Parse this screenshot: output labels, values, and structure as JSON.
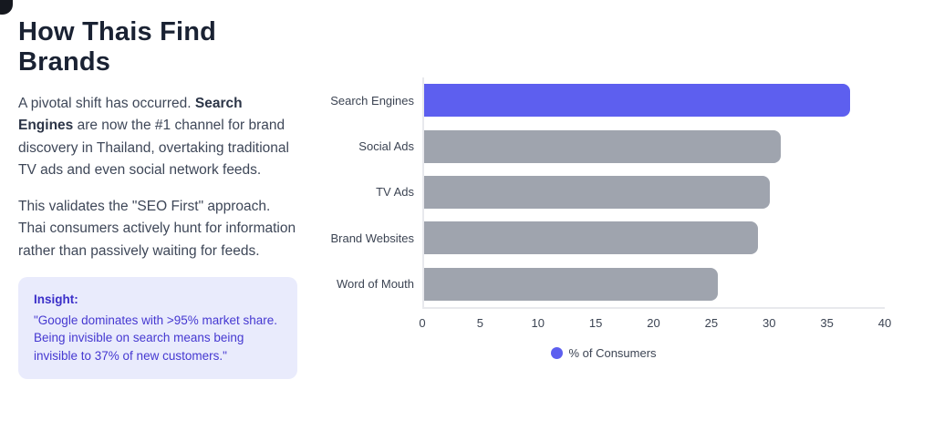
{
  "colors": {
    "brand_purple": "#5D5FEF",
    "bar_gray": "#9FA4AE",
    "title_text": "#1A2233",
    "body_text": "#3E4758",
    "insight_bg": "#E9EBFC",
    "insight_text": "#4538D1",
    "axis_line": "#E8E9ED"
  },
  "header": {
    "title": "How Thais Find Brands"
  },
  "paragraph1": {
    "pre": "A pivotal shift has occurred. ",
    "bold": "Search Engines",
    "post": " are now the #1 channel for brand discovery in Thailand, overtaking traditional TV ads and even social network feeds."
  },
  "paragraph2": "This validates the \"SEO First\" approach. Thai consumers actively hunt for information rather than passively waiting for feeds.",
  "insight": {
    "label": "Insight:",
    "text": "\"Google dominates with >95% market share. Being invisible on search means being invisible to 37% of new customers.\""
  },
  "chart_data": {
    "type": "bar",
    "orientation": "horizontal",
    "title": "",
    "xlabel": "",
    "ylabel": "",
    "categories": [
      "Search Engines",
      "Social Ads",
      "TV Ads",
      "Brand Websites",
      "Word of Mouth"
    ],
    "values": [
      37,
      31,
      30,
      29,
      25.5
    ],
    "bar_colors": [
      "#5D5FEF",
      "#9FA4AE",
      "#9FA4AE",
      "#9FA4AE",
      "#9FA4AE"
    ],
    "xlim": [
      0,
      40
    ],
    "xticks": [
      0,
      5,
      10,
      15,
      20,
      25,
      30,
      35,
      40
    ],
    "grid": false,
    "legend_position": "bottom-center",
    "legend": [
      {
        "label": "% of Consumers",
        "color": "#5D5FEF"
      }
    ]
  }
}
